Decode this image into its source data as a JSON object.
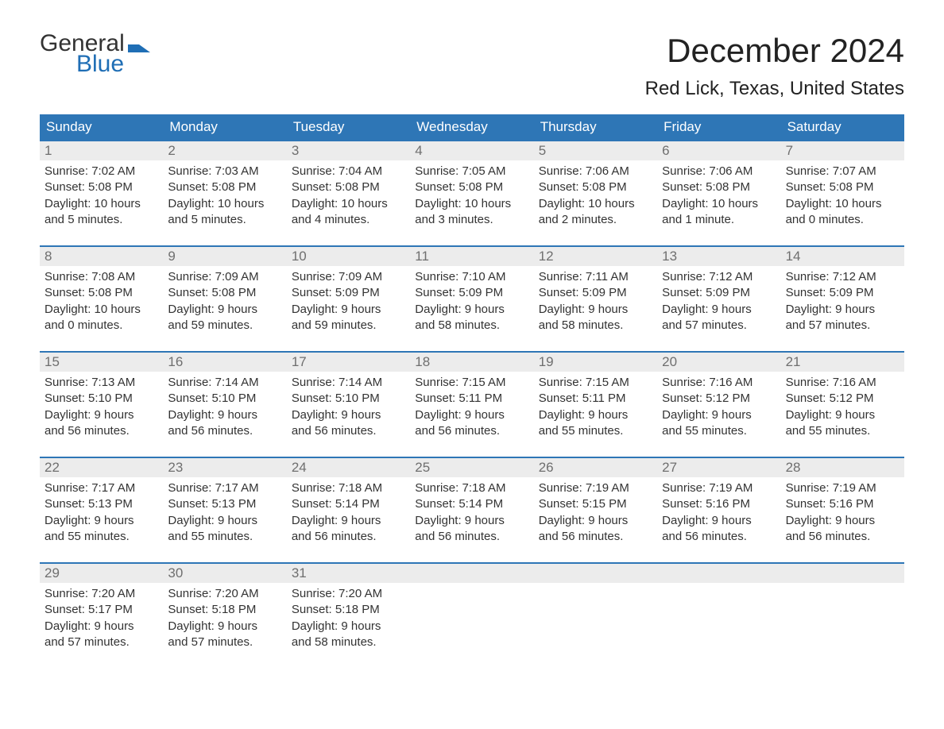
{
  "logo": {
    "line1": "General",
    "line2": "Blue",
    "color_text": "#333333",
    "color_blue": "#1f6eb5"
  },
  "title": "December 2024",
  "location": "Red Lick, Texas, United States",
  "colors": {
    "header_bg": "#2e76b6",
    "header_text": "#ffffff",
    "daynum_bg": "#ececec",
    "daynum_text": "#6f6f6f",
    "body_text": "#333333",
    "rule": "#2e76b6",
    "page_bg": "#ffffff"
  },
  "fonts": {
    "title_size_pt": 32,
    "location_size_pt": 18,
    "header_size_pt": 13,
    "body_size_pt": 11
  },
  "day_headers": [
    "Sunday",
    "Monday",
    "Tuesday",
    "Wednesday",
    "Thursday",
    "Friday",
    "Saturday"
  ],
  "weeks": [
    [
      {
        "n": "1",
        "sunrise": "Sunrise: 7:02 AM",
        "sunset": "Sunset: 5:08 PM",
        "d1": "Daylight: 10 hours",
        "d2": "and 5 minutes."
      },
      {
        "n": "2",
        "sunrise": "Sunrise: 7:03 AM",
        "sunset": "Sunset: 5:08 PM",
        "d1": "Daylight: 10 hours",
        "d2": "and 5 minutes."
      },
      {
        "n": "3",
        "sunrise": "Sunrise: 7:04 AM",
        "sunset": "Sunset: 5:08 PM",
        "d1": "Daylight: 10 hours",
        "d2": "and 4 minutes."
      },
      {
        "n": "4",
        "sunrise": "Sunrise: 7:05 AM",
        "sunset": "Sunset: 5:08 PM",
        "d1": "Daylight: 10 hours",
        "d2": "and 3 minutes."
      },
      {
        "n": "5",
        "sunrise": "Sunrise: 7:06 AM",
        "sunset": "Sunset: 5:08 PM",
        "d1": "Daylight: 10 hours",
        "d2": "and 2 minutes."
      },
      {
        "n": "6",
        "sunrise": "Sunrise: 7:06 AM",
        "sunset": "Sunset: 5:08 PM",
        "d1": "Daylight: 10 hours",
        "d2": "and 1 minute."
      },
      {
        "n": "7",
        "sunrise": "Sunrise: 7:07 AM",
        "sunset": "Sunset: 5:08 PM",
        "d1": "Daylight: 10 hours",
        "d2": "and 0 minutes."
      }
    ],
    [
      {
        "n": "8",
        "sunrise": "Sunrise: 7:08 AM",
        "sunset": "Sunset: 5:08 PM",
        "d1": "Daylight: 10 hours",
        "d2": "and 0 minutes."
      },
      {
        "n": "9",
        "sunrise": "Sunrise: 7:09 AM",
        "sunset": "Sunset: 5:08 PM",
        "d1": "Daylight: 9 hours",
        "d2": "and 59 minutes."
      },
      {
        "n": "10",
        "sunrise": "Sunrise: 7:09 AM",
        "sunset": "Sunset: 5:09 PM",
        "d1": "Daylight: 9 hours",
        "d2": "and 59 minutes."
      },
      {
        "n": "11",
        "sunrise": "Sunrise: 7:10 AM",
        "sunset": "Sunset: 5:09 PM",
        "d1": "Daylight: 9 hours",
        "d2": "and 58 minutes."
      },
      {
        "n": "12",
        "sunrise": "Sunrise: 7:11 AM",
        "sunset": "Sunset: 5:09 PM",
        "d1": "Daylight: 9 hours",
        "d2": "and 58 minutes."
      },
      {
        "n": "13",
        "sunrise": "Sunrise: 7:12 AM",
        "sunset": "Sunset: 5:09 PM",
        "d1": "Daylight: 9 hours",
        "d2": "and 57 minutes."
      },
      {
        "n": "14",
        "sunrise": "Sunrise: 7:12 AM",
        "sunset": "Sunset: 5:09 PM",
        "d1": "Daylight: 9 hours",
        "d2": "and 57 minutes."
      }
    ],
    [
      {
        "n": "15",
        "sunrise": "Sunrise: 7:13 AM",
        "sunset": "Sunset: 5:10 PM",
        "d1": "Daylight: 9 hours",
        "d2": "and 56 minutes."
      },
      {
        "n": "16",
        "sunrise": "Sunrise: 7:14 AM",
        "sunset": "Sunset: 5:10 PM",
        "d1": "Daylight: 9 hours",
        "d2": "and 56 minutes."
      },
      {
        "n": "17",
        "sunrise": "Sunrise: 7:14 AM",
        "sunset": "Sunset: 5:10 PM",
        "d1": "Daylight: 9 hours",
        "d2": "and 56 minutes."
      },
      {
        "n": "18",
        "sunrise": "Sunrise: 7:15 AM",
        "sunset": "Sunset: 5:11 PM",
        "d1": "Daylight: 9 hours",
        "d2": "and 56 minutes."
      },
      {
        "n": "19",
        "sunrise": "Sunrise: 7:15 AM",
        "sunset": "Sunset: 5:11 PM",
        "d1": "Daylight: 9 hours",
        "d2": "and 55 minutes."
      },
      {
        "n": "20",
        "sunrise": "Sunrise: 7:16 AM",
        "sunset": "Sunset: 5:12 PM",
        "d1": "Daylight: 9 hours",
        "d2": "and 55 minutes."
      },
      {
        "n": "21",
        "sunrise": "Sunrise: 7:16 AM",
        "sunset": "Sunset: 5:12 PM",
        "d1": "Daylight: 9 hours",
        "d2": "and 55 minutes."
      }
    ],
    [
      {
        "n": "22",
        "sunrise": "Sunrise: 7:17 AM",
        "sunset": "Sunset: 5:13 PM",
        "d1": "Daylight: 9 hours",
        "d2": "and 55 minutes."
      },
      {
        "n": "23",
        "sunrise": "Sunrise: 7:17 AM",
        "sunset": "Sunset: 5:13 PM",
        "d1": "Daylight: 9 hours",
        "d2": "and 55 minutes."
      },
      {
        "n": "24",
        "sunrise": "Sunrise: 7:18 AM",
        "sunset": "Sunset: 5:14 PM",
        "d1": "Daylight: 9 hours",
        "d2": "and 56 minutes."
      },
      {
        "n": "25",
        "sunrise": "Sunrise: 7:18 AM",
        "sunset": "Sunset: 5:14 PM",
        "d1": "Daylight: 9 hours",
        "d2": "and 56 minutes."
      },
      {
        "n": "26",
        "sunrise": "Sunrise: 7:19 AM",
        "sunset": "Sunset: 5:15 PM",
        "d1": "Daylight: 9 hours",
        "d2": "and 56 minutes."
      },
      {
        "n": "27",
        "sunrise": "Sunrise: 7:19 AM",
        "sunset": "Sunset: 5:16 PM",
        "d1": "Daylight: 9 hours",
        "d2": "and 56 minutes."
      },
      {
        "n": "28",
        "sunrise": "Sunrise: 7:19 AM",
        "sunset": "Sunset: 5:16 PM",
        "d1": "Daylight: 9 hours",
        "d2": "and 56 minutes."
      }
    ],
    [
      {
        "n": "29",
        "sunrise": "Sunrise: 7:20 AM",
        "sunset": "Sunset: 5:17 PM",
        "d1": "Daylight: 9 hours",
        "d2": "and 57 minutes."
      },
      {
        "n": "30",
        "sunrise": "Sunrise: 7:20 AM",
        "sunset": "Sunset: 5:18 PM",
        "d1": "Daylight: 9 hours",
        "d2": "and 57 minutes."
      },
      {
        "n": "31",
        "sunrise": "Sunrise: 7:20 AM",
        "sunset": "Sunset: 5:18 PM",
        "d1": "Daylight: 9 hours",
        "d2": "and 58 minutes."
      },
      null,
      null,
      null,
      null
    ]
  ]
}
